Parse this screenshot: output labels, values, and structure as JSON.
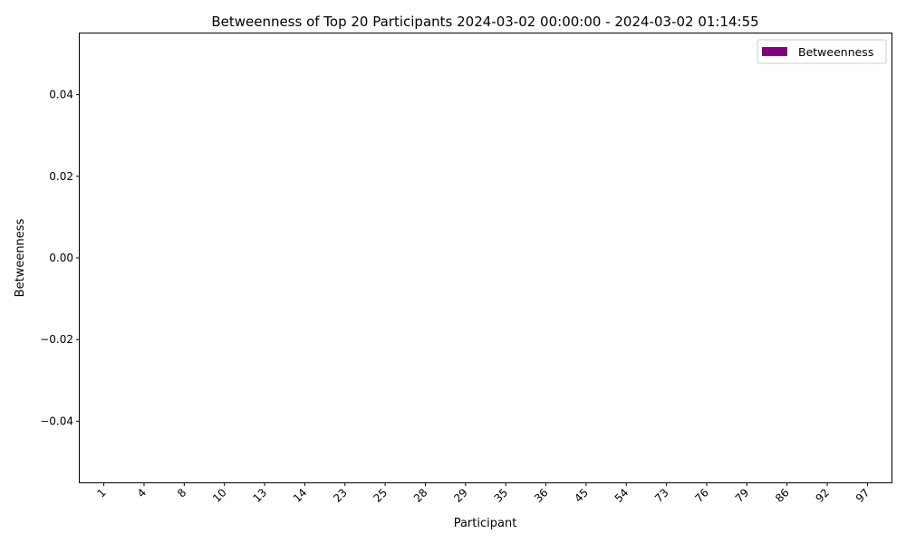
{
  "chart_data": {
    "type": "bar",
    "title": "Betweenness of Top 20 Participants 2024-03-02 00:00:00 - 2024-03-02 01:14:55",
    "xlabel": "Participant",
    "ylabel": "Betweenness",
    "categories": [
      "1",
      "4",
      "8",
      "10",
      "13",
      "14",
      "23",
      "25",
      "28",
      "29",
      "35",
      "36",
      "45",
      "54",
      "73",
      "76",
      "79",
      "86",
      "92",
      "97"
    ],
    "series": [
      {
        "name": "Betweenness",
        "values": [
          0,
          0,
          0,
          0,
          0,
          0,
          0,
          0,
          0,
          0,
          0,
          0,
          0,
          0,
          0,
          0,
          0,
          0,
          0,
          0
        ],
        "color": "#800080"
      }
    ],
    "ylim": [
      -0.055,
      0.055
    ],
    "yticks": [
      -0.04,
      -0.02,
      0.0,
      0.02,
      0.04
    ],
    "ytick_labels": [
      "−0.04",
      "−0.02",
      "0.00",
      "0.02",
      "0.04"
    ],
    "legend_position": "top-right",
    "grid": false
  }
}
